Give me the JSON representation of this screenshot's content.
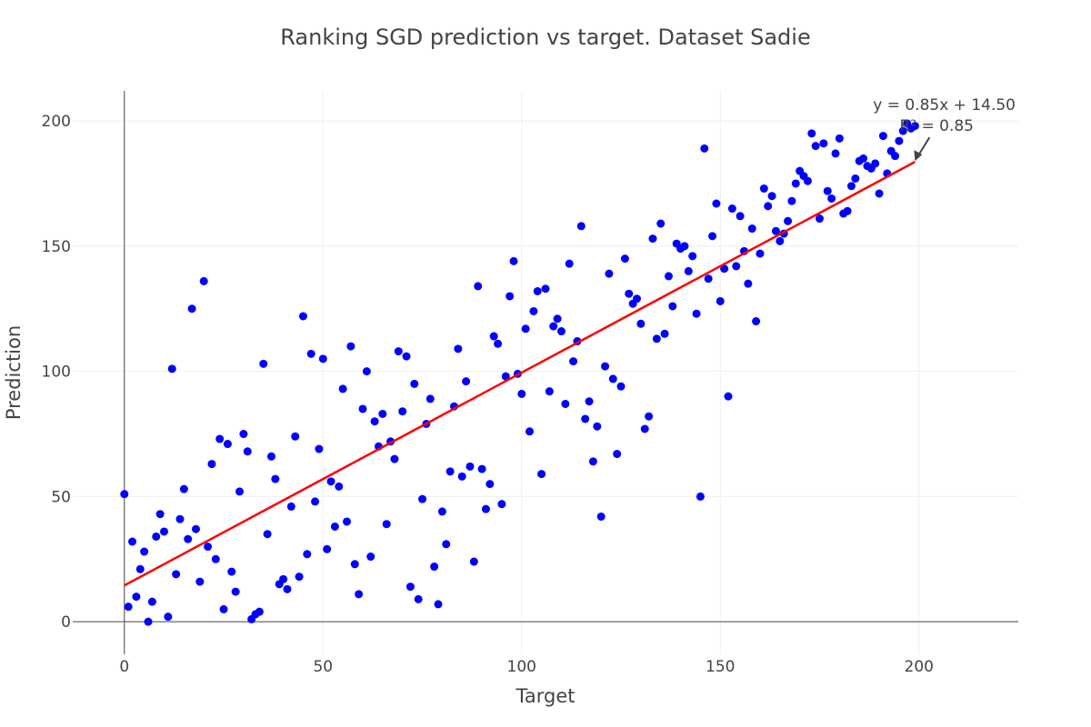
{
  "chart_data": {
    "type": "scatter",
    "title": "Ranking SGD prediction vs target. Dataset Sadie",
    "xlabel": "Target",
    "ylabel": "Prediction",
    "xlim": [
      -13,
      225
    ],
    "ylim": [
      -13,
      212
    ],
    "xticks": [
      0,
      50,
      100,
      150,
      200
    ],
    "yticks": [
      0,
      50,
      100,
      150,
      200
    ],
    "grid": true,
    "legend": "none",
    "colors": {
      "points": "#0000ff",
      "fit_line": "#ff0000",
      "arrow": "#444444"
    },
    "fit_line": {
      "slope": 0.85,
      "intercept": 14.5,
      "x_range": [
        0,
        199
      ]
    },
    "annotation": {
      "lines": [
        "y = 0.85x + 14.50",
        "R² = 0.85"
      ],
      "arrow_to": [
        199,
        184
      ]
    },
    "series": [
      {
        "x": [
          0,
          1,
          2,
          3,
          4,
          5,
          6,
          7,
          8,
          9,
          10,
          11,
          12,
          13,
          14,
          15,
          16,
          17,
          18,
          19,
          20,
          21,
          22,
          23,
          24,
          25,
          26,
          27,
          28,
          29,
          30,
          31,
          32,
          33,
          34,
          35,
          36,
          37,
          38,
          39,
          40,
          41,
          42,
          43,
          44,
          45,
          46,
          47,
          48,
          49,
          50,
          51,
          52,
          53,
          54,
          55,
          56,
          57,
          58,
          59,
          60,
          61,
          62,
          63,
          64,
          65,
          66,
          67,
          68,
          69,
          70,
          71,
          72,
          73,
          74,
          75,
          76,
          77,
          78,
          79,
          80,
          81,
          82,
          83,
          84,
          85,
          86,
          87,
          88,
          89,
          90,
          91,
          92,
          93,
          94,
          95,
          96,
          97,
          98,
          99,
          100,
          101,
          102,
          103,
          104,
          105,
          106,
          107,
          108,
          109,
          110,
          111,
          112,
          113,
          114,
          115,
          116,
          117,
          118,
          119,
          120,
          121,
          122,
          123,
          124,
          125,
          126,
          127,
          128,
          129,
          130,
          131,
          132,
          133,
          134,
          135,
          136,
          137,
          138,
          139,
          140,
          141,
          142,
          143,
          144,
          145,
          146,
          147,
          148,
          149,
          150,
          151,
          152,
          153,
          154,
          155,
          156,
          157,
          158,
          159,
          160,
          161,
          162,
          163,
          164,
          165,
          166,
          167,
          168,
          169,
          170,
          171,
          172,
          173,
          174,
          175,
          176,
          177,
          178,
          179,
          180,
          181,
          182,
          183,
          184,
          185,
          186,
          187,
          188,
          189,
          190,
          191,
          192,
          193,
          194,
          195,
          196,
          197,
          198,
          199
        ],
        "y": [
          51,
          6,
          32,
          10,
          21,
          28,
          0,
          8,
          34,
          43,
          36,
          2,
          101,
          19,
          41,
          53,
          33,
          125,
          37,
          16,
          136,
          30,
          63,
          25,
          73,
          5,
          71,
          20,
          12,
          52,
          75,
          68,
          1,
          3,
          4,
          103,
          35,
          66,
          57,
          15,
          17,
          13,
          46,
          74,
          18,
          122,
          27,
          107,
          48,
          69,
          105,
          29,
          56,
          38,
          54,
          93,
          40,
          110,
          23,
          11,
          85,
          100,
          26,
          80,
          70,
          83,
          39,
          72,
          65,
          108,
          84,
          106,
          14,
          95,
          9,
          49,
          79,
          89,
          22,
          7,
          44,
          31,
          60,
          86,
          109,
          58,
          96,
          62,
          24,
          134,
          61,
          45,
          55,
          114,
          111,
          47,
          98,
          130,
          144,
          99,
          91,
          117,
          76,
          124,
          132,
          59,
          133,
          92,
          118,
          121,
          116,
          87,
          143,
          104,
          112,
          158,
          81,
          88,
          64,
          78,
          42,
          102,
          139,
          97,
          67,
          94,
          145,
          131,
          127,
          129,
          119,
          77,
          82,
          153,
          113,
          159,
          115,
          138,
          126,
          151,
          149,
          150,
          140,
          146,
          123,
          50,
          189,
          137,
          154,
          167,
          128,
          141,
          90,
          165,
          142,
          162,
          148,
          135,
          157,
          120,
          147,
          173,
          166,
          170,
          156,
          152,
          155,
          160,
          168,
          175,
          180,
          178,
          176,
          195,
          190,
          161,
          191,
          172,
          169,
          187,
          193,
          163,
          164,
          174,
          177,
          184,
          185,
          182,
          181,
          183,
          171,
          194,
          179,
          188,
          186,
          192,
          196,
          199,
          197,
          198
        ]
      }
    ]
  }
}
